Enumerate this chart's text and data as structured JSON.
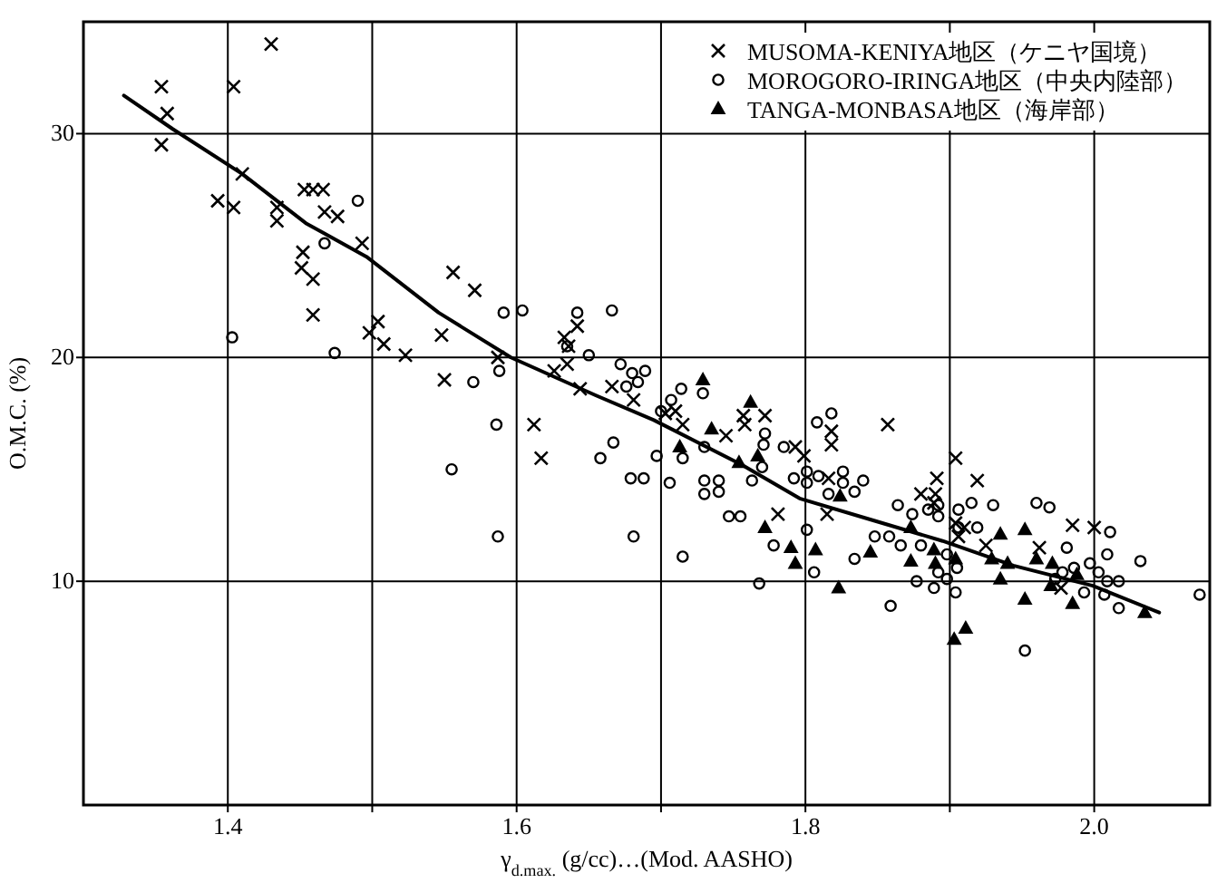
{
  "chart_data": {
    "type": "scatter",
    "xlabel": "γ$_{d.max.}$ (g/cc)…(Mod. AASHO)",
    "ylabel": "O.M.C. (%)",
    "xlim": [
      1.3,
      2.08
    ],
    "ylim": [
      0,
      35
    ],
    "xticks": [
      1.4,
      {
        "value": 1.5,
        "label": null
      },
      1.6,
      {
        "value": 1.7,
        "label": null
      },
      1.8,
      {
        "value": 1.9,
        "label": null
      },
      {
        "value": 2.0,
        "label": "2.0"
      }
    ],
    "yticks": [
      10,
      20,
      30
    ],
    "grid": true,
    "legend": "top right",
    "series": [
      {
        "name": "MUSOMA-KENIYA地区（ケニヤ国境）",
        "color": "#000000",
        "marker": "cross",
        "x": [
          1.354,
          1.358,
          1.354,
          1.404,
          1.43,
          1.41,
          1.393,
          1.404,
          1.434,
          1.434,
          1.453,
          1.459,
          1.466,
          1.467,
          1.476,
          1.452,
          1.451,
          1.459,
          1.459,
          1.493,
          1.504,
          1.498,
          1.508,
          1.523,
          1.548,
          1.556,
          1.571,
          1.55,
          1.587,
          1.612,
          1.626,
          1.633,
          1.636,
          1.635,
          1.642,
          1.644,
          1.617,
          1.666,
          1.681,
          1.703,
          1.71,
          1.715,
          1.745,
          1.757,
          1.758,
          1.772,
          1.781,
          1.793,
          1.799,
          1.818,
          1.818,
          1.816,
          1.815,
          1.857,
          1.904,
          1.891,
          1.88,
          1.89,
          1.919,
          1.889,
          1.904,
          1.91,
          1.906,
          1.925,
          1.985,
          2.0,
          1.962,
          1.977
        ],
        "values": [
          32.1,
          30.9,
          29.5,
          32.1,
          34.0,
          28.2,
          27.0,
          26.7,
          26.7,
          26.1,
          27.5,
          27.5,
          27.5,
          26.5,
          26.3,
          24.7,
          24.0,
          23.5,
          21.9,
          25.1,
          21.6,
          21.1,
          20.6,
          20.1,
          21.0,
          23.8,
          23.0,
          19.0,
          20.0,
          17.0,
          19.4,
          20.9,
          20.5,
          19.7,
          21.4,
          18.6,
          15.5,
          18.7,
          18.1,
          17.5,
          17.6,
          17.0,
          16.5,
          17.4,
          17.0,
          17.4,
          13.0,
          16.0,
          15.6,
          16.7,
          16.1,
          14.6,
          13.0,
          17.0,
          15.5,
          14.6,
          13.9,
          13.9,
          14.5,
          13.5,
          12.6,
          12.4,
          12.0,
          11.6,
          12.5,
          12.4,
          11.5,
          9.7
        ]
      },
      {
        "name": "MOROGORO-IRINGA地区（中央内陸部）",
        "color": "#000000",
        "marker": "circle",
        "x": [
          1.403,
          1.467,
          1.49,
          1.474,
          1.57,
          1.588,
          1.591,
          1.604,
          1.586,
          1.642,
          1.635,
          1.65,
          1.555,
          1.587,
          1.658,
          1.667,
          1.679,
          1.688,
          1.681,
          1.666,
          1.672,
          1.68,
          1.689,
          1.676,
          1.684,
          1.7,
          1.707,
          1.714,
          1.715,
          1.706,
          1.697,
          1.73,
          1.73,
          1.74,
          1.74,
          1.73,
          1.729,
          1.715,
          1.747,
          1.755,
          1.808,
          1.818,
          1.772,
          1.785,
          1.771,
          1.77,
          1.763,
          1.792,
          1.801,
          1.801,
          1.809,
          1.826,
          1.826,
          1.84,
          1.816,
          1.834,
          1.801,
          1.778,
          1.806,
          1.834,
          1.768,
          1.848,
          1.858,
          1.864,
          1.874,
          1.885,
          1.892,
          1.892,
          1.906,
          1.915,
          1.93,
          1.96,
          1.969,
          2.011,
          1.981,
          2.009,
          2.032,
          1.866,
          1.88,
          1.898,
          1.905,
          1.906,
          1.919,
          1.892,
          1.877,
          1.889,
          1.898,
          1.904,
          1.859,
          1.978,
          1.986,
          1.997,
          2.003,
          2.009,
          2.017,
          1.993,
          2.007,
          2.017,
          2.073,
          1.973,
          1.952
        ],
        "values": [
          20.9,
          25.1,
          27.0,
          20.2,
          18.9,
          19.4,
          22.0,
          22.1,
          17.0,
          22.0,
          20.5,
          20.1,
          15.0,
          12.0,
          15.5,
          16.2,
          14.6,
          14.6,
          12.0,
          22.1,
          19.7,
          19.3,
          19.4,
          18.7,
          18.9,
          17.6,
          18.1,
          18.6,
          15.5,
          14.4,
          15.6,
          16.0,
          13.9,
          14.5,
          14.0,
          14.5,
          18.4,
          11.1,
          12.9,
          12.9,
          17.1,
          17.5,
          16.6,
          16.0,
          16.1,
          15.1,
          14.5,
          14.6,
          14.9,
          14.4,
          14.7,
          14.9,
          14.4,
          14.5,
          13.9,
          14.0,
          12.3,
          11.6,
          10.4,
          11.0,
          9.9,
          12.0,
          12.0,
          13.4,
          13.0,
          13.2,
          13.4,
          12.9,
          13.2,
          13.5,
          13.4,
          13.5,
          13.3,
          12.2,
          11.5,
          11.2,
          10.9,
          11.6,
          11.6,
          11.2,
          10.6,
          12.4,
          12.4,
          10.4,
          10.0,
          9.7,
          10.1,
          9.5,
          8.9,
          10.4,
          10.6,
          10.8,
          10.4,
          10.0,
          10.0,
          9.5,
          9.4,
          8.8,
          9.4,
          10.1,
          6.9
        ]
      },
      {
        "name": "TANGA-MONBASA地区（海岸部）",
        "color": "#000000",
        "marker": "triangle",
        "x": [
          1.729,
          1.762,
          1.713,
          1.735,
          1.767,
          1.754,
          1.824,
          1.772,
          1.79,
          1.807,
          1.793,
          1.845,
          1.823,
          1.873,
          1.889,
          1.873,
          1.89,
          1.904,
          1.929,
          1.94,
          1.935,
          1.952,
          1.96,
          1.935,
          1.971,
          1.952,
          1.97,
          1.985,
          1.988,
          2.035,
          1.903,
          1.911
        ],
        "values": [
          19.0,
          18.0,
          16.0,
          16.8,
          15.6,
          15.3,
          13.8,
          12.4,
          11.5,
          11.4,
          10.8,
          11.3,
          9.7,
          12.4,
          11.4,
          10.9,
          10.8,
          11.0,
          11.0,
          10.8,
          12.1,
          12.3,
          11.0,
          10.1,
          10.8,
          9.2,
          9.8,
          9.0,
          10.3,
          8.6,
          7.4,
          7.9
        ]
      },
      {
        "type": "line",
        "color": "#000000",
        "x": [
          1.328,
          1.362,
          1.41,
          1.454,
          1.496,
          1.546,
          1.596,
          1.655,
          1.695,
          1.756,
          1.796,
          1.848,
          1.895,
          1.944,
          1.999,
          2.045
        ],
        "values": [
          31.7,
          30.2,
          28.2,
          26.0,
          24.5,
          22.0,
          20.0,
          18.3,
          17.2,
          15.2,
          13.7,
          12.7,
          11.8,
          10.7,
          9.8,
          8.6
        ]
      }
    ]
  }
}
